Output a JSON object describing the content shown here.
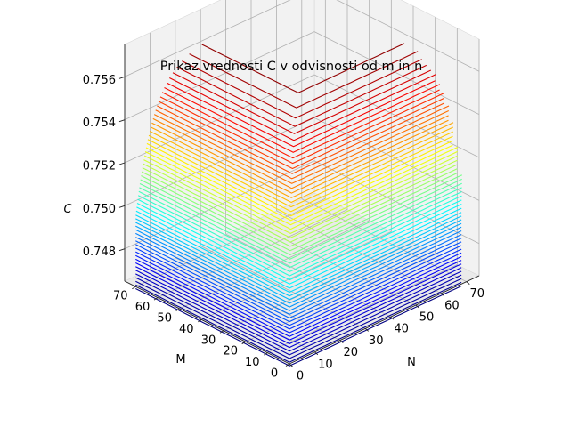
{
  "chart_data": {
    "type": "surface_contour_3d",
    "title": "Prikaz vrednosti C v odvisnosti od m in n",
    "xlabel": "N",
    "ylabel": "M",
    "zlabel": "C",
    "x_ticks": [
      "0",
      "10",
      "20",
      "30",
      "40",
      "50",
      "60",
      "70"
    ],
    "y_ticks": [
      "0",
      "10",
      "20",
      "30",
      "40",
      "50",
      "60",
      "70"
    ],
    "z_ticks": [
      "0.748",
      "0.750",
      "0.752",
      "0.754",
      "0.756"
    ],
    "xlim": [
      0,
      75
    ],
    "ylim": [
      0,
      75
    ],
    "zlim": [
      0.7465,
      0.7575
    ],
    "colormap": "jet",
    "level_range": [
      0.7462,
      0.7565
    ],
    "level_count": 60,
    "surface_function": "C(m,n) rises from about 0.7462 at m=n=0 toward a plateau of about 0.7565; ridge along the back edges of the m and n ranges",
    "grid": true
  }
}
